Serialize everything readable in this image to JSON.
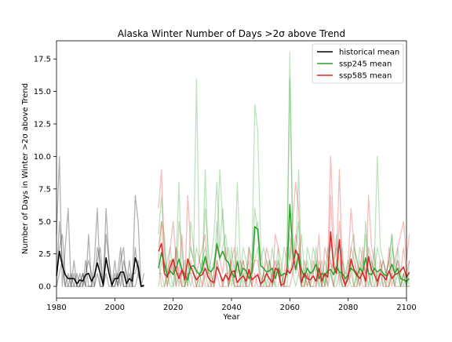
{
  "chart_data": {
    "type": "line",
    "title": "Alaska Winter Number of Days >2σ above Trend",
    "xlabel": "Year",
    "ylabel": "Number of Days in Winter >2σ above Trend",
    "xlim": [
      1980,
      2100
    ],
    "ylim": [
      -0.9,
      18.9
    ],
    "xticks": [
      "1980",
      "2000",
      "2020",
      "2040",
      "2060",
      "2080",
      "2100"
    ],
    "yticks": [
      "0.0",
      "2.5",
      "5.0",
      "7.5",
      "10.0",
      "12.5",
      "15.0",
      "17.5"
    ],
    "legend_position": "top-right",
    "colors": {
      "historical": "#000000",
      "ssp245": "#2ca02c",
      "ssp585": "#d62728"
    },
    "series": [
      {
        "name": "historical mean",
        "x_start": 1980,
        "values": [
          0.8,
          2.7,
          1.6,
          0.9,
          0.6,
          0.6,
          0.6,
          0.2,
          0.5,
          0.4,
          0.9,
          1.0,
          0.4,
          0.8,
          1.8,
          1.0,
          0.1,
          2.2,
          1.0,
          0.1,
          0.6,
          0.6,
          1.1,
          1.1,
          0.2,
          0.6,
          0.4,
          2.2,
          1.5,
          0.0,
          0.1
        ]
      },
      {
        "name": "ssp245 mean",
        "x_start": 2015,
        "values": [
          1.4,
          2.6,
          1.7,
          0.8,
          1.2,
          0.9,
          1.4,
          2.1,
          1.3,
          0.9,
          0.5,
          1.5,
          1.6,
          1.2,
          0.9,
          1.3,
          2.3,
          1.3,
          1.1,
          1.5,
          3.3,
          2.2,
          2.7,
          2.1,
          1.8,
          1.1,
          0.7,
          1.9,
          0.8,
          1.4,
          1.2,
          0.6,
          1.1,
          4.6,
          4.4,
          1.6,
          1.4,
          1.1,
          1.2,
          1.4,
          0.6,
          1.4,
          0.8,
          1.0,
          0.9,
          6.3,
          2.6,
          1.3,
          2.5,
          1.3,
          0.7,
          1.4,
          1.0,
          1.2,
          1.7,
          0.6,
          1.0,
          0.8,
          1.2,
          1.3,
          0.9,
          1.5,
          1.1,
          1.0,
          0.6,
          0.9,
          1.4,
          1.2,
          0.8,
          1.4,
          1.1,
          2.2,
          1.0,
          0.9,
          1.4,
          1.1,
          1.3,
          1.0,
          0.8,
          1.1,
          1.7,
          1.0,
          1.4,
          0.6,
          0.5,
          0.4,
          0.6
        ]
      },
      {
        "name": "ssp585 mean",
        "x_start": 2015,
        "values": [
          2.7,
          3.3,
          1.0,
          0.7,
          1.5,
          2.1,
          1.2,
          0.6,
          1.3,
          0.5,
          2.1,
          1.5,
          1.0,
          0.5,
          0.8,
          0.9,
          1.4,
          0.7,
          0.4,
          0.3,
          1.5,
          1.0,
          0.4,
          0.9,
          0.5,
          1.1,
          1.2,
          0.3,
          0.6,
          0.8,
          0.4,
          1.3,
          0.5,
          0.7,
          0.9,
          0.2,
          0.4,
          1.0,
          0.6,
          0.3,
          1.4,
          1.2,
          0.1,
          0.2,
          1.3,
          1.0,
          1.5,
          2.8,
          2.3,
          0.3,
          1.0,
          0.6,
          0.5,
          0.8,
          0.4,
          1.4,
          0.4,
          1.0,
          0.7,
          4.2,
          1.5,
          1.0,
          3.6,
          0.7,
          0.1,
          0.6,
          2.1,
          1.3,
          0.9,
          0.6,
          1.1,
          0.4,
          2.3,
          1.3,
          0.9,
          0.4,
          1.0,
          0.8,
          0.5,
          1.2,
          0.6,
          0.9,
          1.0,
          1.2,
          1.5,
          0.7,
          1.1
        ]
      }
    ],
    "members": [
      {
        "group": "historical",
        "x_start": 1980,
        "values": [
          4,
          10,
          0,
          3,
          6,
          0,
          2,
          0,
          0,
          1,
          0,
          4,
          0,
          2,
          6,
          0,
          0,
          6,
          2,
          0,
          0,
          1,
          3,
          0,
          0,
          0,
          0,
          7,
          5,
          0,
          1
        ]
      },
      {
        "group": "historical",
        "x_start": 1980,
        "values": [
          0,
          5,
          2,
          0,
          0,
          1,
          0,
          0,
          1,
          0,
          2,
          0,
          0,
          0,
          3,
          2,
          0,
          1,
          0,
          0,
          1,
          0,
          2,
          3,
          0,
          2,
          0,
          3,
          1,
          0,
          0
        ]
      },
      {
        "group": "historical",
        "x_start": 1980,
        "values": [
          1,
          3,
          4,
          1,
          0,
          0,
          0,
          1,
          0,
          0,
          1,
          2,
          1,
          0,
          1,
          0,
          0,
          4,
          2,
          0,
          0,
          1,
          0,
          2,
          1,
          0,
          1,
          1,
          2,
          0,
          0
        ]
      },
      {
        "group": "historical",
        "x_start": 1980,
        "values": [
          0,
          1,
          2,
          0,
          1,
          0,
          1,
          0,
          0,
          1,
          0,
          0,
          0,
          1,
          2,
          3,
          0,
          2,
          1,
          0,
          2,
          0,
          1,
          0,
          0,
          1,
          0,
          0,
          1,
          0,
          0
        ]
      },
      {
        "group": "ssp245",
        "x_start": 2015,
        "values": [
          4,
          7,
          3,
          1,
          2,
          2,
          0,
          5,
          3,
          0,
          1,
          3,
          2,
          16,
          2,
          1,
          6,
          3,
          1,
          2,
          3,
          9,
          5,
          2,
          0,
          3,
          1,
          8,
          2,
          0,
          1,
          3,
          2,
          14,
          12,
          3,
          1,
          0,
          2,
          1,
          0,
          2,
          1,
          3,
          2,
          18,
          4,
          2,
          9,
          1,
          0,
          3,
          2,
          1,
          2,
          0,
          1,
          0,
          3,
          2,
          1,
          4,
          0,
          2,
          1,
          1,
          3,
          4,
          0,
          2,
          1,
          4,
          1,
          0,
          2,
          10,
          3,
          2,
          1,
          2,
          4,
          0,
          3,
          1,
          0,
          1,
          0
        ]
      },
      {
        "group": "ssp245",
        "x_start": 2015,
        "values": [
          2,
          5,
          4,
          0,
          1,
          0,
          3,
          2,
          1,
          2,
          0,
          5,
          3,
          1,
          0,
          2,
          3,
          1,
          2,
          4,
          8,
          3,
          6,
          2,
          3,
          1,
          0,
          2,
          1,
          3,
          2,
          1,
          0,
          4,
          5,
          2,
          3,
          2,
          1,
          3,
          1,
          2,
          0,
          1,
          1,
          16,
          3,
          1,
          2,
          4,
          1,
          0,
          1,
          3,
          2,
          1,
          0,
          2,
          1,
          1,
          2,
          3,
          2,
          0,
          1,
          2,
          1,
          3,
          2,
          1,
          1,
          5,
          2,
          1,
          3,
          0,
          1,
          2,
          1,
          0,
          3,
          2,
          1,
          0,
          1,
          0,
          2
        ]
      },
      {
        "group": "ssp245",
        "x_start": 2015,
        "values": [
          0,
          2,
          1,
          2,
          3,
          1,
          2,
          8,
          0,
          1,
          0,
          2,
          1,
          3,
          2,
          1,
          9,
          2,
          0,
          1,
          5,
          2,
          3,
          4,
          2,
          0,
          1,
          3,
          0,
          2,
          0,
          0,
          2,
          6,
          4,
          1,
          0,
          1,
          2,
          0,
          1,
          3,
          2,
          0,
          1,
          4,
          2,
          3,
          5,
          0,
          1,
          2,
          0,
          1,
          3,
          1,
          2,
          0,
          2,
          1,
          0,
          2,
          1,
          3,
          0,
          1,
          2,
          0,
          1,
          3,
          2,
          1,
          0,
          2,
          1,
          3,
          2,
          0,
          1,
          2,
          4,
          1,
          2,
          0,
          1,
          0,
          1
        ]
      },
      {
        "group": "ssp245",
        "x_start": 2015,
        "values": [
          1,
          1,
          0,
          1,
          0,
          0,
          1,
          1,
          0,
          0,
          1,
          0,
          1,
          0,
          1,
          2,
          0,
          0,
          1,
          0,
          2,
          1,
          0,
          1,
          0,
          1,
          0,
          0,
          0,
          1,
          0,
          0,
          1,
          2,
          3,
          0,
          1,
          0,
          0,
          1,
          0,
          0,
          1,
          0,
          0,
          3,
          1,
          0,
          1,
          0,
          0,
          1,
          0,
          0,
          1,
          0,
          0,
          1,
          0,
          1,
          0,
          1,
          1,
          0,
          0,
          1,
          0,
          0,
          1,
          0,
          1,
          0,
          0,
          1,
          0,
          1,
          0,
          1,
          0,
          0,
          1,
          0,
          1,
          0,
          0,
          0,
          0
        ]
      },
      {
        "group": "ssp585",
        "x_start": 2015,
        "values": [
          6,
          9,
          2,
          1,
          3,
          5,
          2,
          1,
          4,
          0,
          7,
          3,
          2,
          1,
          2,
          3,
          4,
          1,
          0,
          1,
          3,
          2,
          1,
          3,
          0,
          2,
          3,
          1,
          2,
          1,
          0,
          3,
          1,
          2,
          2,
          0,
          1,
          3,
          2,
          0,
          4,
          3,
          0,
          1,
          3,
          2,
          5,
          8,
          6,
          0,
          2,
          1,
          0,
          2,
          1,
          4,
          0,
          3,
          2,
          10,
          4,
          2,
          9,
          1,
          0,
          2,
          6,
          3,
          2,
          1,
          3,
          0,
          7,
          3,
          2,
          0,
          2,
          1,
          0,
          3,
          1,
          2,
          3,
          4,
          5,
          2,
          4
        ]
      },
      {
        "group": "ssp585",
        "x_start": 2015,
        "values": [
          3,
          5,
          1,
          0,
          2,
          1,
          3,
          0,
          1,
          1,
          2,
          1,
          0,
          0,
          1,
          0,
          2,
          1,
          1,
          0,
          2,
          1,
          0,
          1,
          1,
          2,
          0,
          0,
          1,
          2,
          1,
          2,
          0,
          1,
          0,
          0,
          1,
          2,
          0,
          1,
          2,
          1,
          0,
          0,
          2,
          1,
          2,
          4,
          3,
          1,
          1,
          0,
          1,
          1,
          0,
          2,
          1,
          1,
          0,
          7,
          2,
          1,
          5,
          2,
          0,
          1,
          3,
          2,
          1,
          0,
          2,
          1,
          3,
          2,
          1,
          0,
          1,
          2,
          1,
          2,
          0,
          1,
          2,
          1,
          3,
          1,
          2
        ]
      },
      {
        "group": "ssp585",
        "x_start": 2015,
        "values": [
          2,
          0,
          0,
          1,
          1,
          2,
          0,
          1,
          0,
          0,
          1,
          1,
          1,
          0,
          0,
          0,
          1,
          0,
          0,
          0,
          1,
          0,
          0,
          0,
          0,
          1,
          1,
          0,
          0,
          0,
          0,
          1,
          0,
          0,
          1,
          0,
          0,
          0,
          0,
          0,
          1,
          1,
          0,
          0,
          0,
          0,
          1,
          2,
          1,
          0,
          0,
          1,
          0,
          0,
          0,
          1,
          0,
          0,
          1,
          2,
          0,
          0,
          1,
          0,
          0,
          0,
          1,
          0,
          0,
          1,
          0,
          0,
          1,
          0,
          0,
          0,
          1,
          0,
          0,
          0,
          1,
          0,
          0,
          0,
          1,
          0,
          0
        ]
      }
    ]
  }
}
